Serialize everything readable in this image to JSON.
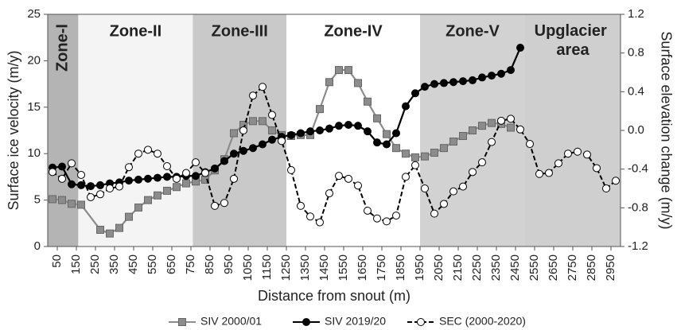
{
  "chart_data": {
    "type": "line",
    "xlabel": "Distance from snout (m)",
    "ylabel": "Surface ice velocity (m/y)",
    "y2label": "Surface elevation change (m/y)",
    "xlim": [
      0,
      3000
    ],
    "xticks": [
      50,
      150,
      250,
      350,
      450,
      550,
      650,
      750,
      850,
      950,
      1050,
      1150,
      1250,
      1350,
      1450,
      1550,
      1650,
      1750,
      1850,
      1950,
      2050,
      2150,
      2250,
      2350,
      2450,
      2550,
      2650,
      2750,
      2850,
      2950
    ],
    "ylim": [
      0,
      25
    ],
    "yticks": [
      0,
      5,
      10,
      15,
      20,
      25
    ],
    "y2lim": [
      -1.2,
      1.2
    ],
    "y2ticks": [
      -1.2,
      -0.8,
      -0.4,
      {
        "value": 0,
        "label": "0.0"
      },
      0.4,
      0.8,
      1.2
    ],
    "zones": [
      {
        "name": "Zone-I",
        "range": [
          0,
          160
        ],
        "color": "#b4b4b4"
      },
      {
        "name": "Zone-II",
        "range": [
          160,
          760
        ],
        "color": "#f4f4f4"
      },
      {
        "name": "Zone-III",
        "range": [
          760,
          1250
        ],
        "color": "#c9c9c9"
      },
      {
        "name": "Zone-IV",
        "range": [
          1250,
          1950
        ],
        "color": "#ffffff"
      },
      {
        "name": "Zone-V",
        "range": [
          1950,
          2500
        ],
        "color": "#d2d2d2"
      },
      {
        "name": "Upglacier area",
        "range": [
          2500,
          3000
        ],
        "color": "#cfcfcf"
      }
    ],
    "series": [
      {
        "name": "SIV 2000/01",
        "color": "#8c8c8c",
        "marker": "square",
        "marker_fill": "#8c8c8c",
        "x": [
          25,
          75,
          125,
          175,
          275,
          325,
          375,
          425,
          475,
          525,
          575,
          625,
          675,
          725,
          775,
          825,
          875,
          925,
          975,
          1025,
          1075,
          1125,
          1175,
          1225,
          1275,
          1325,
          1375,
          1425,
          1475,
          1525,
          1575,
          1625,
          1675,
          1725,
          1775,
          1825,
          1875,
          1925,
          1975,
          2025,
          2075,
          2125,
          2175,
          2225,
          2275,
          2325,
          2375,
          2425
        ],
        "values": [
          5.1,
          5.0,
          4.6,
          4.5,
          1.8,
          1.4,
          2.0,
          3.2,
          4.2,
          5.0,
          5.5,
          6.0,
          6.4,
          6.8,
          7.0,
          7.2,
          8.2,
          9.4,
          12.2,
          13.1,
          13.5,
          13.5,
          12.5,
          12.0,
          11.9,
          12.0,
          12.0,
          14.8,
          17.7,
          19.0,
          19.0,
          17.6,
          15.6,
          13.8,
          12.1,
          10.6,
          10.0,
          9.6,
          9.7,
          10.1,
          10.6,
          11.3,
          11.9,
          12.5,
          13.0,
          13.3,
          13.2,
          12.8
        ]
      },
      {
        "name": "SIV 2019/20",
        "color": "#000000",
        "marker": "circle",
        "marker_fill": "#000000",
        "x": [
          25,
          75,
          125,
          175,
          225,
          275,
          325,
          375,
          425,
          475,
          525,
          575,
          625,
          675,
          725,
          775,
          825,
          875,
          925,
          975,
          1025,
          1075,
          1125,
          1175,
          1225,
          1275,
          1325,
          1375,
          1425,
          1475,
          1525,
          1575,
          1625,
          1675,
          1725,
          1775,
          1825,
          1875,
          1925,
          1975,
          2025,
          2075,
          2125,
          2175,
          2225,
          2275,
          2325,
          2375,
          2425,
          2475
        ],
        "values": [
          8.5,
          8.6,
          6.7,
          6.6,
          6.5,
          6.6,
          6.8,
          6.9,
          7.1,
          7.2,
          7.3,
          7.4,
          7.5,
          7.5,
          7.6,
          7.6,
          8.0,
          8.4,
          9.2,
          10.0,
          10.3,
          10.6,
          11.0,
          11.5,
          11.8,
          12.0,
          12.2,
          12.4,
          12.5,
          12.7,
          13.0,
          13.1,
          13.0,
          12.4,
          11.2,
          11.0,
          12.2,
          15.1,
          16.5,
          17.2,
          17.5,
          17.6,
          17.7,
          17.8,
          17.9,
          18.2,
          18.4,
          18.6,
          19.0,
          21.4
        ]
      },
      {
        "name": "SEC (2000-2020)",
        "color": "#000000",
        "marker": "circle",
        "marker_fill": "#ffffff",
        "dashed": true,
        "axis": "y2",
        "x": [
          25,
          75,
          125,
          175,
          225,
          275,
          325,
          375,
          425,
          475,
          525,
          575,
          625,
          675,
          725,
          775,
          825,
          875,
          925,
          975,
          1025,
          1075,
          1125,
          1175,
          1225,
          1275,
          1325,
          1375,
          1425,
          1475,
          1525,
          1575,
          1625,
          1675,
          1725,
          1775,
          1825,
          1875,
          1925,
          1975,
          2025,
          2075,
          2125,
          2175,
          2225,
          2275,
          2325,
          2375,
          2425,
          2475,
          2525,
          2575,
          2625,
          2675,
          2725,
          2775,
          2825,
          2875,
          2925,
          2975
        ],
        "values": [
          -0.43,
          -0.5,
          -0.34,
          -0.46,
          -0.69,
          -0.66,
          -0.6,
          -0.58,
          -0.38,
          -0.24,
          -0.2,
          -0.24,
          -0.37,
          -0.5,
          -0.44,
          -0.33,
          -0.44,
          -0.78,
          -0.75,
          -0.5,
          0,
          0.36,
          0.45,
          0.16,
          -0.11,
          -0.41,
          -0.78,
          -0.89,
          -0.95,
          -0.65,
          -0.47,
          -0.5,
          -0.57,
          -0.83,
          -0.91,
          -0.94,
          -0.88,
          -0.48,
          -0.36,
          -0.6,
          -0.86,
          -0.76,
          -0.63,
          -0.58,
          -0.43,
          -0.33,
          -0.12,
          0.1,
          0.12,
          0.01,
          -0.14,
          -0.45,
          -0.44,
          -0.34,
          -0.24,
          -0.22,
          -0.25,
          -0.39,
          -0.6,
          -0.52
        ]
      }
    ]
  }
}
